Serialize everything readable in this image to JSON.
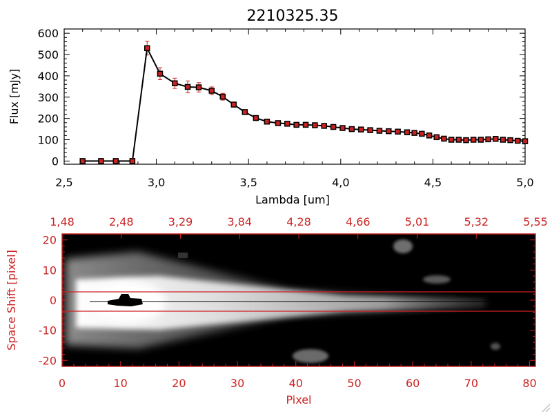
{
  "colors": {
    "spectrum_line": "#000000",
    "marker": "#cc2222",
    "error_bar": "#cc2222",
    "image_axes": "#cc2222",
    "background": "#ffffff"
  },
  "chart_data": [
    {
      "type": "line",
      "title": "2210325.35",
      "xlabel": "Lambda [um]",
      "ylabel": "Flux [mJy]",
      "xlim": [
        2.5,
        5.0
      ],
      "ylim": [
        -15,
        620
      ],
      "xticks": [
        "2,5",
        "3,0",
        "3,5",
        "4,0",
        "4,5",
        "5,0"
      ],
      "yticks": [
        "0",
        "100",
        "200",
        "300",
        "400",
        "500",
        "600"
      ],
      "grid": false,
      "series": [
        {
          "x": [
            2.6,
            2.7,
            2.78,
            2.87,
            2.95,
            3.02,
            3.1,
            3.17,
            3.23,
            3.3,
            3.36,
            3.42,
            3.48,
            3.54,
            3.6,
            3.66,
            3.71,
            3.76,
            3.81,
            3.86,
            3.91,
            3.96,
            4.01,
            4.06,
            4.11,
            4.16,
            4.21,
            4.26,
            4.31,
            4.36,
            4.4,
            4.44,
            4.48,
            4.52,
            4.56,
            4.6,
            4.64,
            4.68,
            4.72,
            4.76,
            4.8,
            4.84,
            4.88,
            4.92,
            4.96,
            5.0
          ],
          "y": [
            0,
            0,
            0,
            0,
            530,
            410,
            365,
            348,
            346,
            330,
            302,
            265,
            230,
            202,
            185,
            178,
            175,
            170,
            170,
            168,
            165,
            160,
            155,
            150,
            148,
            145,
            142,
            140,
            138,
            135,
            132,
            128,
            120,
            112,
            105,
            100,
            100,
            98,
            100,
            100,
            102,
            104,
            100,
            98,
            95,
            93
          ],
          "yerr": [
            0,
            0,
            0,
            0,
            32,
            28,
            24,
            28,
            22,
            18,
            16,
            12,
            10,
            8,
            8,
            6,
            6,
            6,
            6,
            6,
            5,
            5,
            5,
            5,
            5,
            5,
            5,
            5,
            5,
            5,
            5,
            5,
            5,
            5,
            5,
            5,
            5,
            5,
            5,
            5,
            5,
            5,
            5,
            5,
            5,
            5
          ]
        }
      ]
    },
    {
      "type": "heatmap",
      "xlabel": "Pixel",
      "ylabel": "Space Shift [pixel]",
      "xlim": [
        0,
        81
      ],
      "ylim": [
        -22,
        22
      ],
      "xticks": [
        "0",
        "10",
        "20",
        "30",
        "40",
        "50",
        "60",
        "70",
        "80"
      ],
      "yticks": [
        "-20",
        "-10",
        "0",
        "10",
        "20"
      ],
      "top_axis_ticks": [
        "1,48",
        "2,48",
        "3,29",
        "3,84",
        "4,28",
        "4,66",
        "5,01",
        "5,32",
        "5,55"
      ],
      "aperture_lines": [
        3,
        -3
      ],
      "blobs": [
        {
          "x": 11,
          "y": 0,
          "description": "bright core with saturated center"
        },
        {
          "x": 58,
          "y": 16
        },
        {
          "x": 64,
          "y": 6
        },
        {
          "x": 43,
          "y": -19
        },
        {
          "x": 74,
          "y": -14
        }
      ]
    }
  ]
}
